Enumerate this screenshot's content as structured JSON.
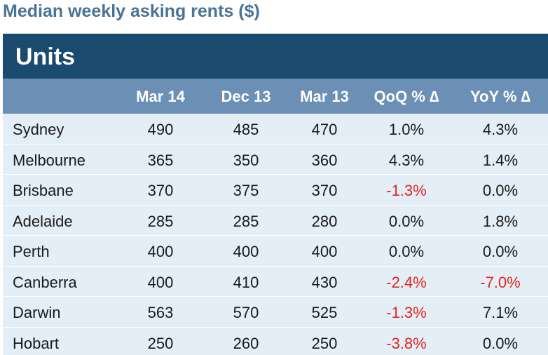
{
  "title": "Median weekly asking rents ($)",
  "section": "Units",
  "columns": [
    "Mar 14",
    "Dec 13",
    "Mar 13",
    "QoQ % ∆",
    "YoY % ∆"
  ],
  "rows": [
    {
      "city": "Sydney",
      "mar14": "490",
      "dec13": "485",
      "mar13": "470",
      "qoq": "1.0%",
      "yoy": "4.3%"
    },
    {
      "city": "Melbourne",
      "mar14": "365",
      "dec13": "350",
      "mar13": "360",
      "qoq": "4.3%",
      "yoy": "1.4%"
    },
    {
      "city": "Brisbane",
      "mar14": "370",
      "dec13": "375",
      "mar13": "370",
      "qoq": "-1.3%",
      "yoy": "0.0%"
    },
    {
      "city": "Adelaide",
      "mar14": "285",
      "dec13": "285",
      "mar13": "280",
      "qoq": "0.0%",
      "yoy": "1.8%"
    },
    {
      "city": "Perth",
      "mar14": "400",
      "dec13": "400",
      "mar13": "400",
      "qoq": "0.0%",
      "yoy": "0.0%"
    },
    {
      "city": "Canberra",
      "mar14": "400",
      "dec13": "410",
      "mar13": "430",
      "qoq": "-2.4%",
      "yoy": "-7.0%"
    },
    {
      "city": "Darwin",
      "mar14": "563",
      "dec13": "570",
      "mar13": "525",
      "qoq": "-1.3%",
      "yoy": "7.1%"
    },
    {
      "city": "Hobart",
      "mar14": "250",
      "dec13": "260",
      "mar13": "250",
      "qoq": "-3.8%",
      "yoy": "0.0%"
    }
  ],
  "colors": {
    "title": "#4a7396",
    "section_bar": "#1a4a6e",
    "header_bar": "#6b8fb5",
    "row_shade": "#e3eef7",
    "negative": "#e0281e"
  }
}
